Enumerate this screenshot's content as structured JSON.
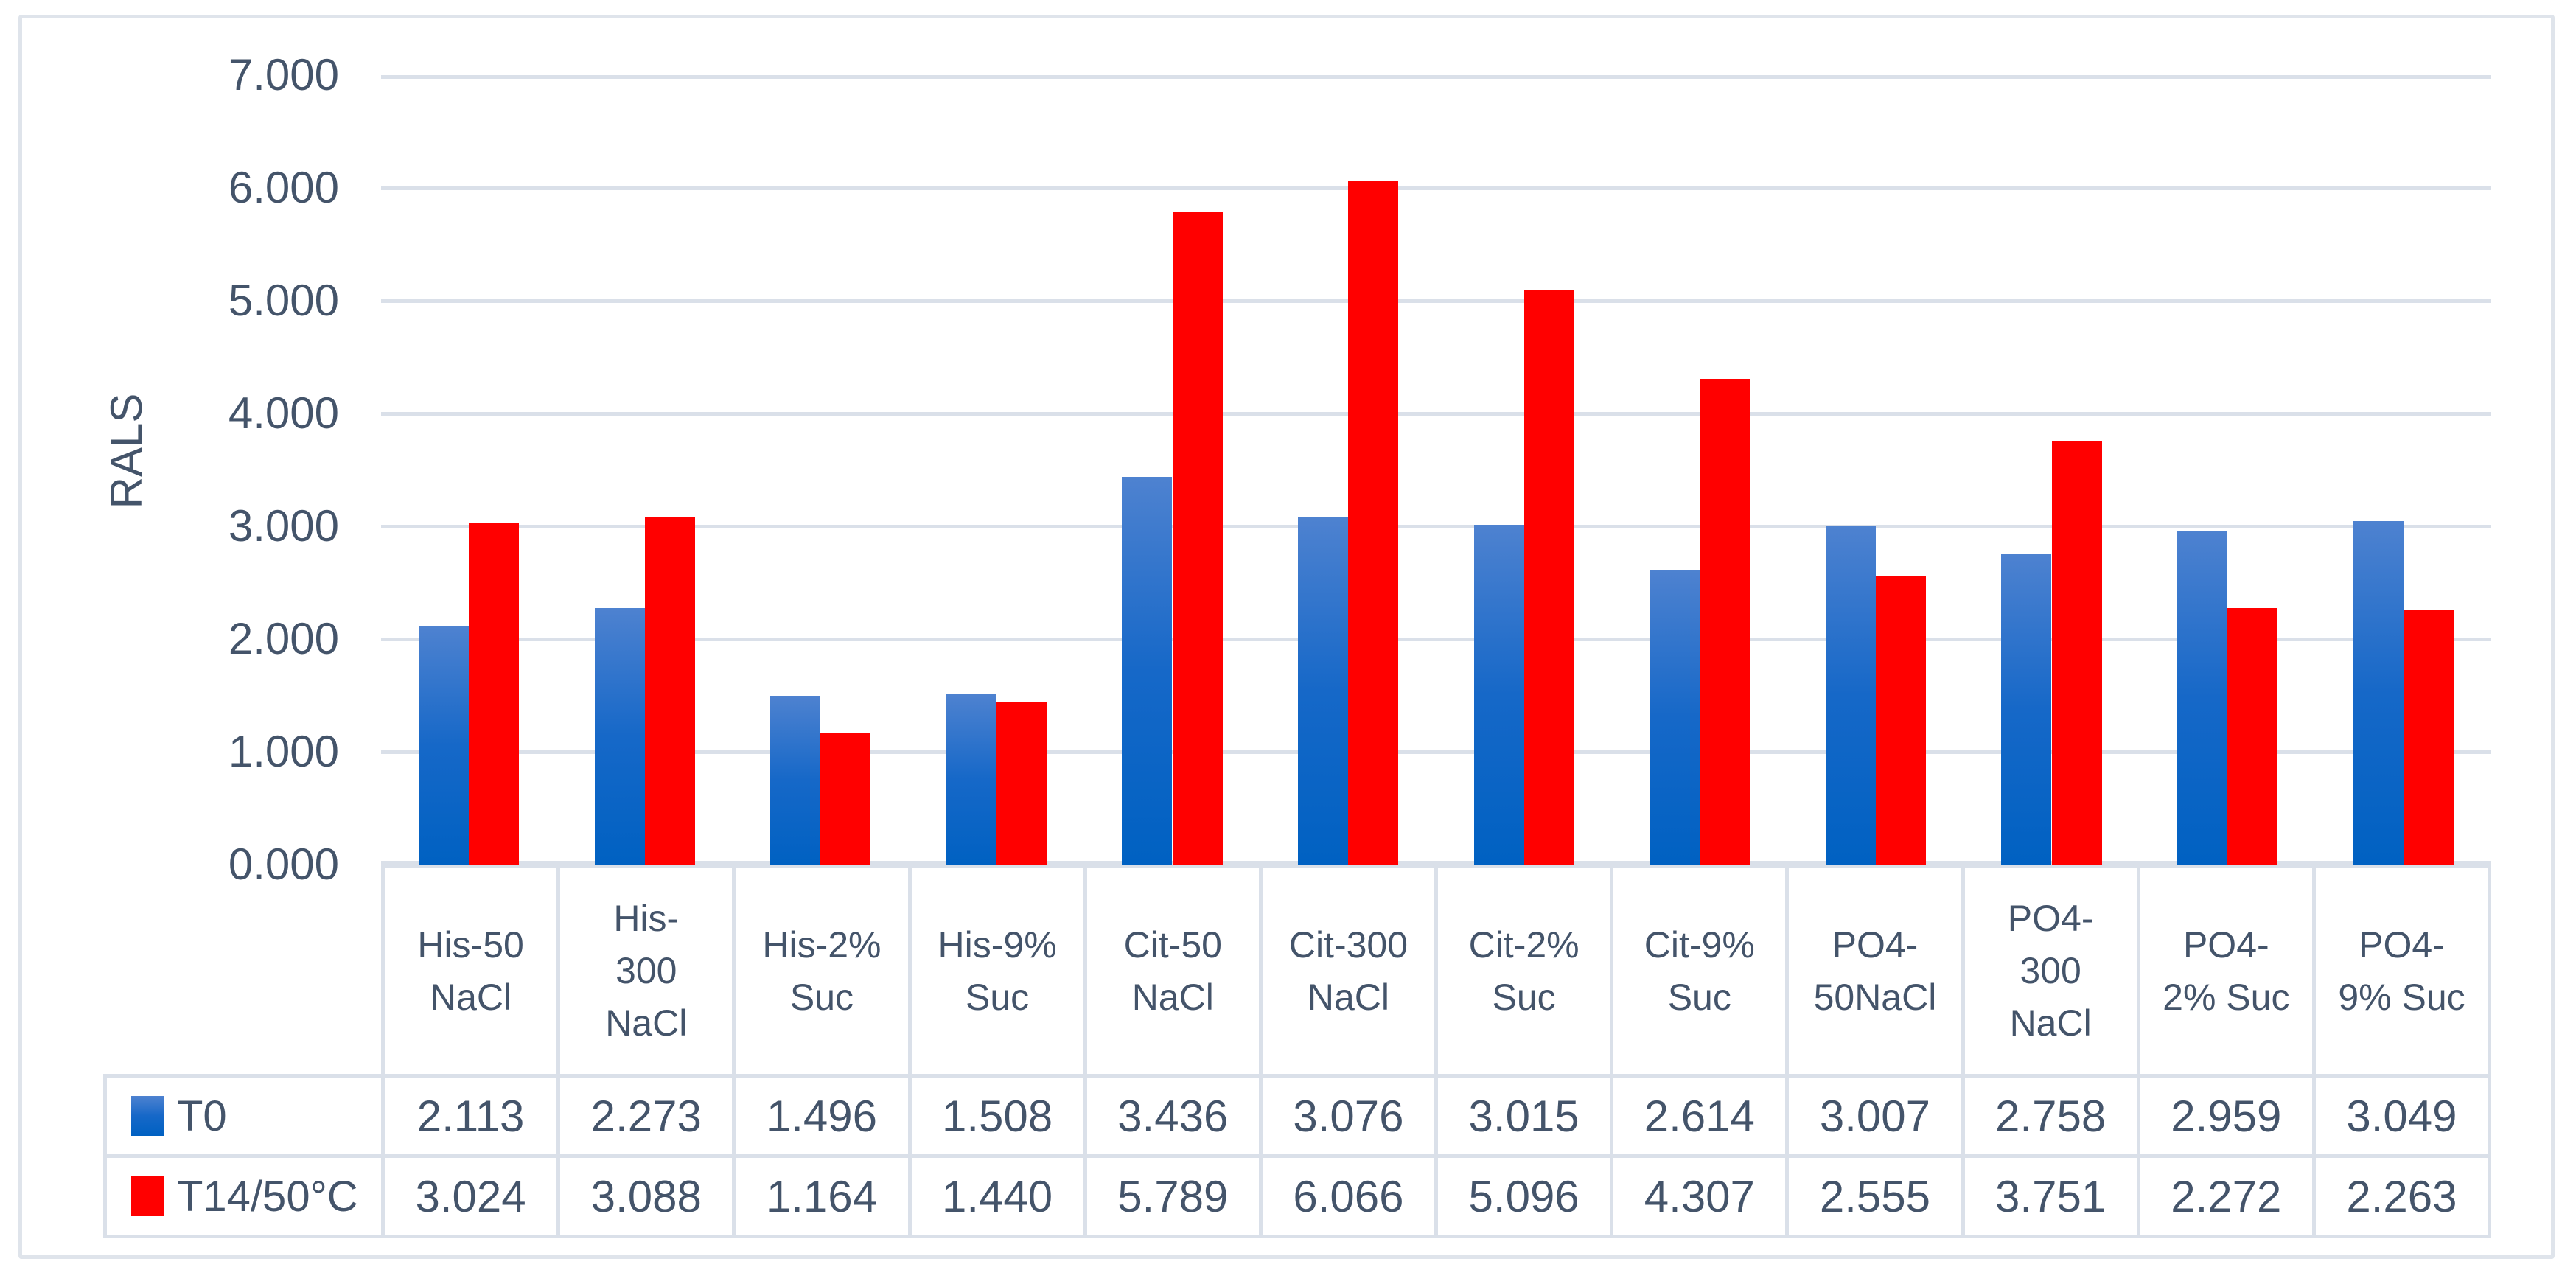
{
  "colors": {
    "text": "#44546A",
    "gridline": "#DAE0E9",
    "table_border": "#DAE0E9",
    "chart_border": "#DFE4EB",
    "series_blue_top": "#4E82D0",
    "series_blue_bottom": "#0061C2",
    "series_red": "#FF0000",
    "background": "#FFFFFF"
  },
  "chart_data": {
    "type": "bar",
    "title": "",
    "xlabel": "",
    "ylabel": "RALS",
    "ylim": [
      0,
      7
    ],
    "ytick_step": 1,
    "ytick_labels": [
      "0.000",
      "1.000",
      "2.000",
      "3.000",
      "4.000",
      "5.000",
      "6.000",
      "7.000"
    ],
    "grid": true,
    "legend_position": "table-left",
    "categories": [
      "His-50 NaCl",
      "His-300 NaCl",
      "His-2% Suc",
      "His-9% Suc",
      "Cit-50 NaCl",
      "Cit-300 NaCl",
      "Cit-2% Suc",
      "Cit-9% Suc",
      "PO4-50NaCl",
      "PO4-300 NaCl",
      "PO4-2% Suc",
      "PO4-9% Suc"
    ],
    "category_lines": [
      [
        "His-50",
        "NaCl"
      ],
      [
        "His-",
        "300",
        "NaCl"
      ],
      [
        "His-2%",
        "Suc"
      ],
      [
        "His-9%",
        "Suc"
      ],
      [
        "Cit-50",
        "NaCl"
      ],
      [
        "Cit-300",
        "NaCl"
      ],
      [
        "Cit-2%",
        "Suc"
      ],
      [
        "Cit-9%",
        "Suc"
      ],
      [
        "PO4-",
        "50NaCl"
      ],
      [
        "PO4-",
        "300",
        "NaCl"
      ],
      [
        "PO4-",
        "2% Suc"
      ],
      [
        "PO4-",
        "9% Suc"
      ]
    ],
    "series": [
      {
        "name": "T0",
        "values": [
          2.113,
          2.273,
          1.496,
          1.508,
          3.436,
          3.076,
          3.015,
          2.614,
          3.007,
          2.758,
          2.959,
          3.049
        ],
        "display_values": [
          "2.113",
          "2.273",
          "1.496",
          "1.508",
          "3.436",
          "3.076",
          "3.015",
          "2.614",
          "3.007",
          "2.758",
          "2.959",
          "3.049"
        ]
      },
      {
        "name": "T14/50°C",
        "values": [
          3.024,
          3.088,
          1.164,
          1.44,
          5.789,
          6.066,
          5.096,
          4.307,
          2.555,
          3.751,
          2.272,
          2.263
        ],
        "display_values": [
          "3.024",
          "3.088",
          "1.164",
          "1.440",
          "5.789",
          "6.066",
          "5.096",
          "4.307",
          "2.555",
          "3.751",
          "2.272",
          "2.263"
        ]
      }
    ]
  }
}
